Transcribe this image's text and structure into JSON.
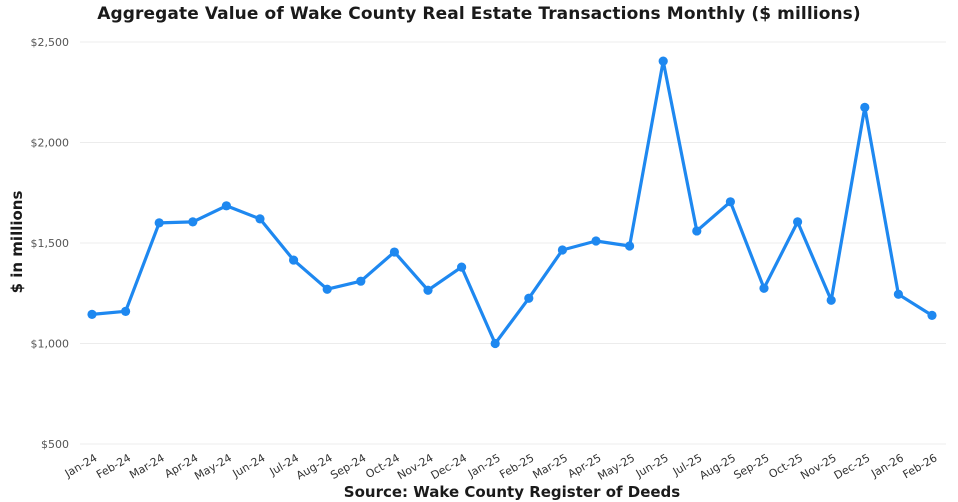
{
  "chart_data": {
    "type": "line",
    "title": "Aggregate Value of Wake County Real Estate Transactions Monthly ($ millions)",
    "xlabel": "Source: Wake County Register of Deeds",
    "ylabel": "$ in millions",
    "ylim": [
      500,
      2500
    ],
    "yticks": [
      500,
      1000,
      1500,
      2000,
      2500
    ],
    "ytick_labels": [
      "$500",
      "$1,000",
      "$1,500",
      "$2,000",
      "$2,500"
    ],
    "grid": true,
    "legend": "none",
    "categories": [
      "Jan-24",
      "Feb-24",
      "Mar-24",
      "Apr-24",
      "May-24",
      "Jun-24",
      "Jul-24",
      "Aug-24",
      "Sep-24",
      "Oct-24",
      "Nov-24",
      "Dec-24",
      "Jan-25",
      "Feb-25",
      "Mar-25",
      "Apr-25",
      "May-25",
      "Jun-25",
      "Jul-25",
      "Aug-25",
      "Sep-25",
      "Oct-25",
      "Nov-25",
      "Dec-25",
      "Jan-26",
      "Feb-26"
    ],
    "series": [
      {
        "color": "#1e88f0",
        "values": [
          1145,
          1160,
          1600,
          1605,
          1685,
          1620,
          1415,
          1270,
          1310,
          1455,
          1265,
          1380,
          1000,
          1225,
          1465,
          1510,
          1485,
          2405,
          1560,
          1705,
          1275,
          1605,
          1215,
          2175,
          1245,
          1140
        ]
      }
    ]
  }
}
